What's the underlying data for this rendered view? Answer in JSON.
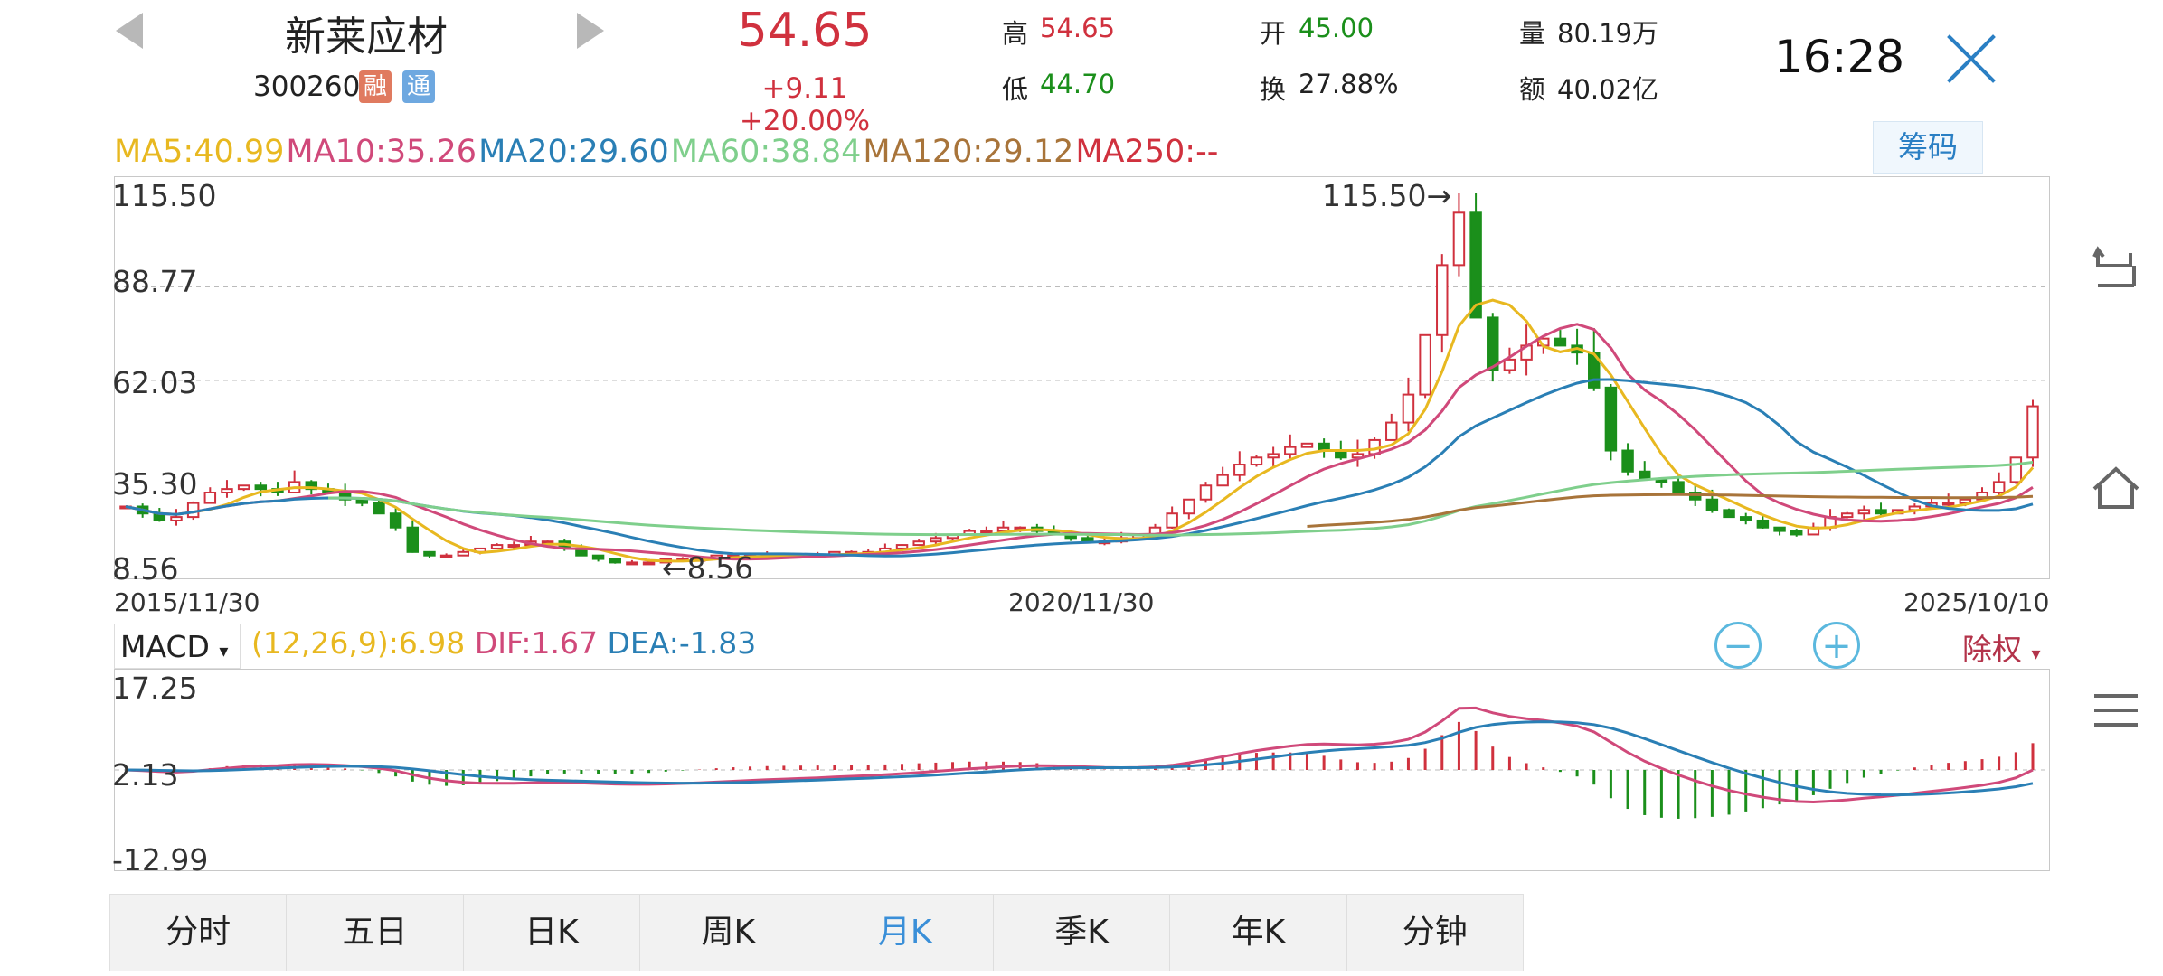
{
  "header": {
    "stock_name": "新莱应材",
    "stock_code": "300260",
    "tag_rong": "融",
    "tag_tong": "通",
    "price": "54.65",
    "change": "+9.11  +20.00%",
    "quote": {
      "high_label": "高",
      "high": "54.65",
      "low_label": "低",
      "low": "44.70",
      "open_label": "开",
      "open": "45.00",
      "turnover_label": "换",
      "turnover": "27.88%",
      "volume_label": "量",
      "volume": "80.19万",
      "amount_label": "额",
      "amount": "40.02亿"
    },
    "time": "16:28"
  },
  "ma": {
    "ma5": "MA5:40.99",
    "ma10": "MA10:35.26",
    "ma20": "MA20:29.60",
    "ma60": "MA60:38.84",
    "ma120": "MA120:29.12",
    "ma250": "MA250:--"
  },
  "chip_button": "筹码",
  "colors": {
    "ma5": "#e8b820",
    "ma10": "#d0497a",
    "ma20": "#2a7fb5",
    "ma60": "#7fcf8c",
    "ma120": "#a8743a",
    "ma250": "#d0313e",
    "up": "#d0313e",
    "down": "#1b8f1b"
  },
  "kline_axis": {
    "y_labels": [
      "115.50",
      "88.77",
      "62.03",
      "35.30",
      "8.56"
    ],
    "dates": [
      "2015/11/30",
      "2020/11/30",
      "2025/10/10"
    ],
    "max_marker": "115.50→",
    "min_marker": "←8.56"
  },
  "macd": {
    "select": "MACD",
    "params": "(12,26,9):6.98",
    "dif": "DIF:1.67",
    "dea": "DEA:-1.83",
    "y_labels": [
      "17.25",
      "2.13",
      "-12.99"
    ],
    "chuquan": "除权"
  },
  "tabs": [
    "分时",
    "五日",
    "日K",
    "周K",
    "月K",
    "季K",
    "年K",
    "分钟"
  ],
  "active_tab": "月K",
  "chart_data": {
    "type": "candlestick",
    "x_start": "2015/11/30",
    "x_mid": "2020/11/30",
    "x_end": "2025/10/10",
    "ylim": [
      8.56,
      115.5
    ],
    "max_point": 115.5,
    "min_point": 8.56,
    "latest_close": 54.65,
    "monthly_close_approx": [
      26,
      24,
      22,
      23,
      27,
      30,
      31,
      32,
      31,
      30,
      33,
      31,
      30,
      28,
      27,
      24,
      20,
      13,
      12,
      12,
      13,
      14,
      15,
      15,
      16,
      16,
      14,
      12,
      11,
      10,
      10,
      10,
      11,
      11,
      11,
      12,
      12,
      12,
      12,
      12,
      12,
      12,
      13,
      13,
      13,
      14,
      15,
      16,
      17,
      18,
      19,
      19,
      20,
      20,
      19,
      18,
      17,
      16,
      16,
      17,
      18,
      20,
      24,
      28,
      32,
      35,
      38,
      40,
      41,
      43,
      44,
      42,
      40,
      41,
      45,
      50,
      58,
      75,
      95,
      110,
      80,
      65,
      68,
      72,
      74,
      72,
      70,
      60,
      42,
      36,
      34,
      33,
      30,
      28,
      25,
      23,
      22,
      20,
      19,
      18,
      20,
      23,
      24,
      25,
      24,
      25,
      26,
      27,
      27,
      28,
      30,
      33,
      40,
      54.65
    ]
  }
}
